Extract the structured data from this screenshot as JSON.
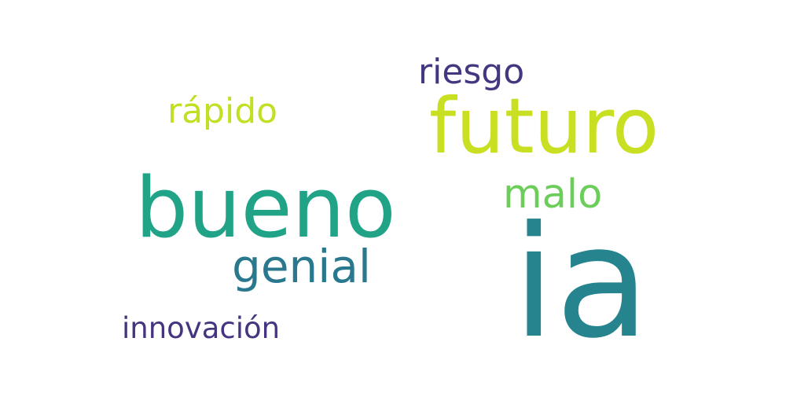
{
  "words": [
    {
      "id": "ia",
      "text": "ia",
      "color": "#25848e"
    },
    {
      "id": "bueno",
      "text": "bueno",
      "color": "#20a386"
    },
    {
      "id": "futuro",
      "text": "futuro",
      "color": "#c8df22"
    },
    {
      "id": "genial",
      "text": "genial",
      "color": "#2a788e"
    },
    {
      "id": "malo",
      "text": "malo",
      "color": "#6ccd5a"
    },
    {
      "id": "rapido",
      "text": "rápido",
      "color": "#c2df23"
    },
    {
      "id": "riesgo",
      "text": "riesgo",
      "color": "#453681"
    },
    {
      "id": "innovacion",
      "text": "innovación",
      "color": "#463480"
    }
  ]
}
